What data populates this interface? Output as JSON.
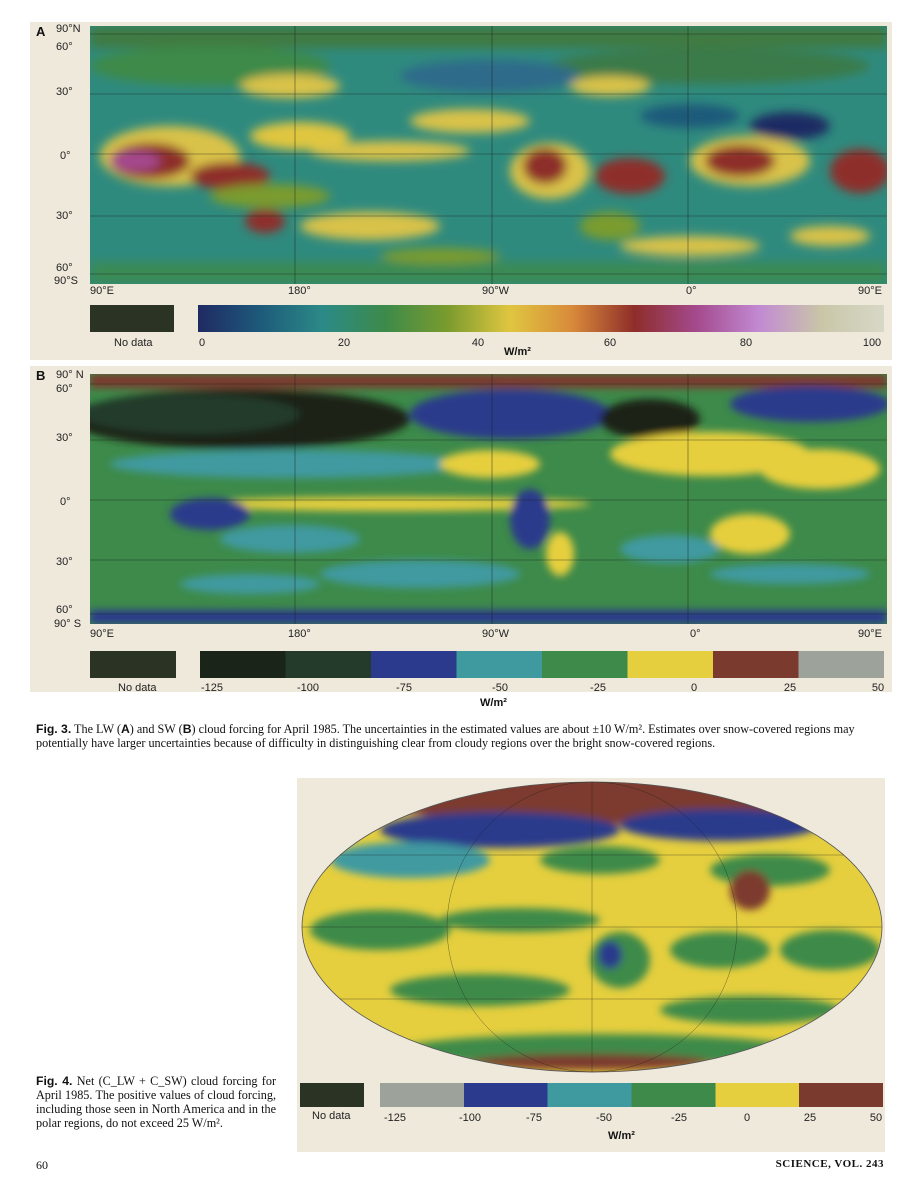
{
  "figure3": {
    "panelA": {
      "letter": "A",
      "lat_labels": [
        "90°N",
        "60°",
        "30°",
        "0°",
        "30°",
        "60°",
        "90°S"
      ],
      "lon_labels": [
        "90°E",
        "180°",
        "90°W",
        "0°",
        "90°E"
      ],
      "nodata_label": "No data",
      "scale_ticks": [
        "0",
        "20",
        "40",
        "60",
        "80",
        "100"
      ],
      "scale_colors": [
        "#1f2a63",
        "#1e5a7a",
        "#2b8a87",
        "#3d8a4a",
        "#7a9b2e",
        "#e0c640",
        "#d88a3a",
        "#8e2d2a",
        "#a44a8e",
        "#c28ad2",
        "#c9c6a8",
        "#d8d8c8"
      ],
      "nodata_color": "#2b3424",
      "unit": "W/m²"
    },
    "panelB": {
      "letter": "B",
      "lat_labels": [
        "90° N",
        "60°",
        "30°",
        "0°",
        "30°",
        "60°",
        "90° S"
      ],
      "lon_labels": [
        "90°E",
        "180°",
        "90°W",
        "0°",
        "90°E"
      ],
      "nodata_label": "No data",
      "scale_ticks": [
        "-125",
        "-100",
        "-75",
        "-50",
        "-25",
        "0",
        "25",
        "50"
      ],
      "scale_colors": [
        "#1b2418",
        "#243a2a",
        "#2b3a8c",
        "#3f9aa0",
        "#3d8a4a",
        "#e6cf3e",
        "#7b3a2e",
        "#9da39a"
      ],
      "nodata_color": "#2b3424",
      "unit": "W/m²"
    },
    "caption": {
      "figno": "Fig. 3.",
      "text_1": " The LW (",
      "a": "A",
      "text_2": ") and SW (",
      "b": "B",
      "text_3": ") cloud forcing for April 1985. The uncertainties in the estimated values are about ±10 W/m². Estimates over snow-covered regions may potentially have larger uncertainties because of difficulty in distinguishing clear from cloudy regions over the bright snow-covered regions."
    }
  },
  "figure4": {
    "nodata_label": "No data",
    "scale_ticks": [
      "-125",
      "-100",
      "-75",
      "-50",
      "-25",
      "0",
      "25",
      "50"
    ],
    "scale_colors": [
      "#9da39a",
      "#2b3a8c",
      "#3f9aa0",
      "#3d8a4a",
      "#e6cf3e",
      "#7b3a2e"
    ],
    "nodata_color": "#2b3424",
    "unit": "W/m²",
    "caption": {
      "figno": "Fig. 4.",
      "text": " Net (C_LW + C_SW) cloud forcing for April 1985. The positive values of cloud forcing, including those seen in North America and in the polar regions, do not exceed 25 W/m²."
    }
  },
  "footer": {
    "page_number": "60",
    "journal": "SCIENCE, VOL. 243"
  }
}
